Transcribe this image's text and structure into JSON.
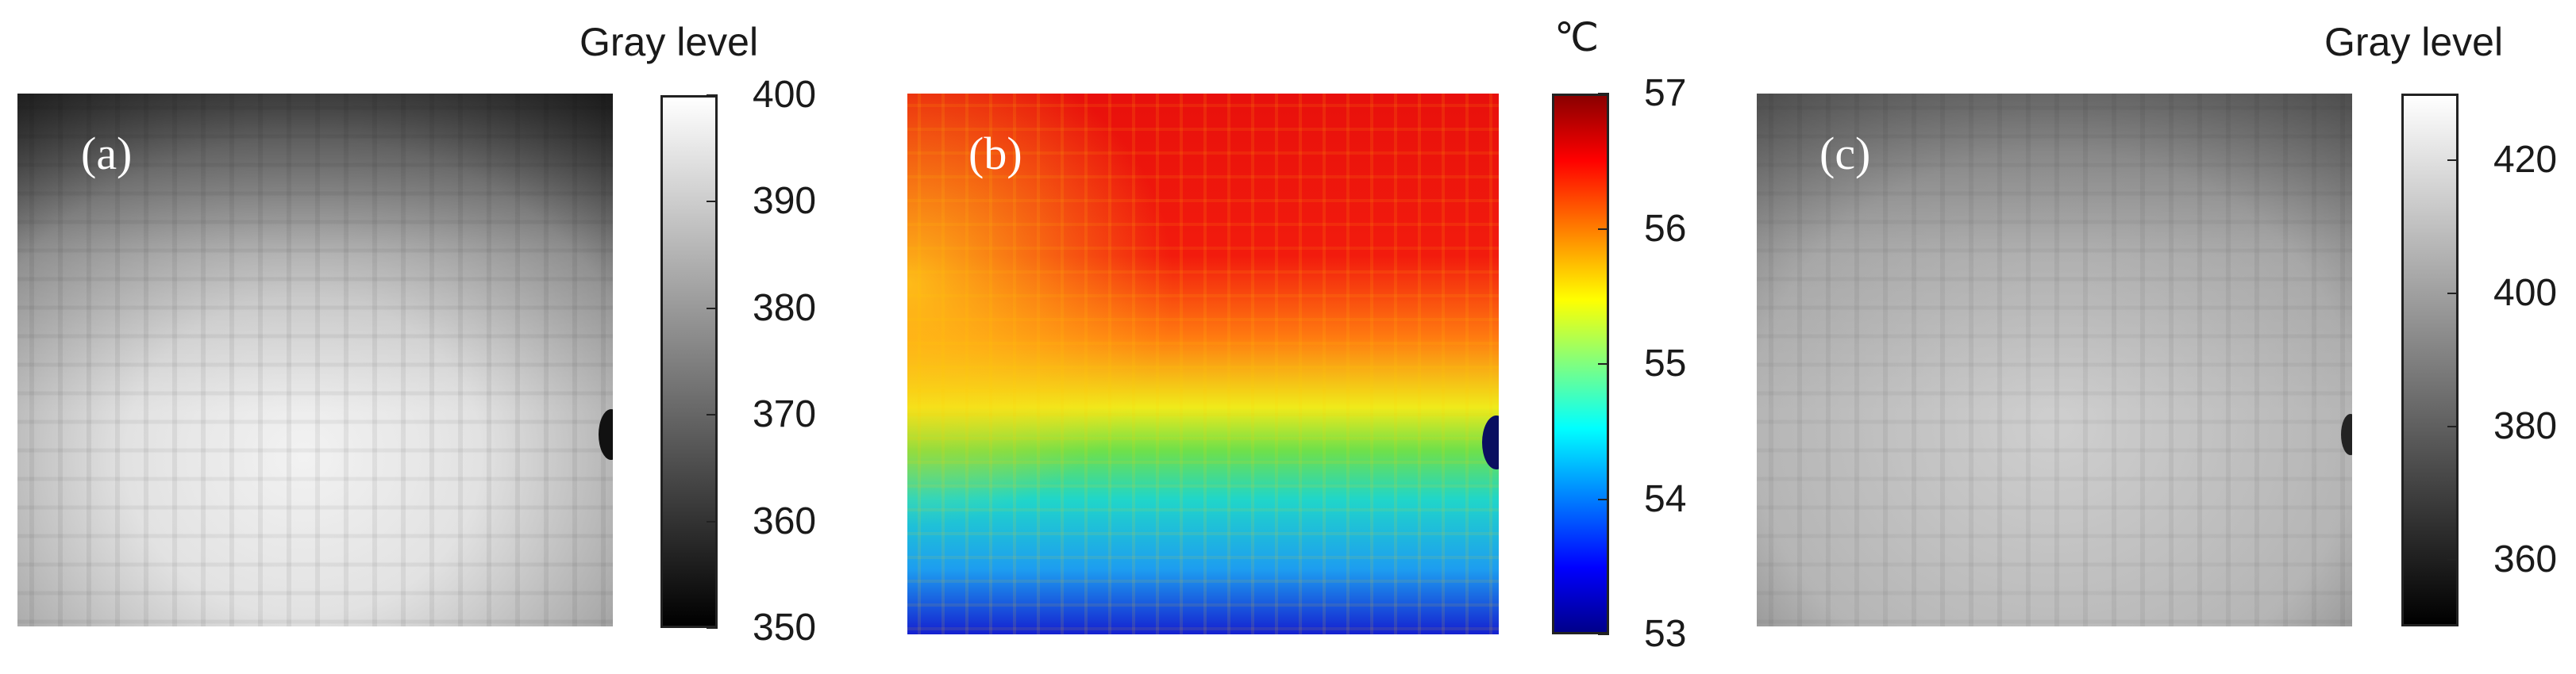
{
  "figure": {
    "panels": [
      {
        "label": "(a)",
        "scale_title": "Gray level",
        "colormap": "gray",
        "scale_range": [
          350,
          400
        ],
        "ticks": [
          "400",
          "390",
          "380",
          "370",
          "360",
          "350"
        ]
      },
      {
        "label": "(b)",
        "scale_title": "℃",
        "colormap": "jet",
        "scale_range": [
          53,
          57
        ],
        "ticks": [
          "57",
          "56",
          "55",
          "54",
          "53"
        ]
      },
      {
        "label": "(c)",
        "scale_title": "Gray level",
        "colormap": "gray",
        "scale_range": [
          350,
          430
        ],
        "ticks": [
          "420",
          "400",
          "380",
          "360"
        ]
      }
    ]
  }
}
